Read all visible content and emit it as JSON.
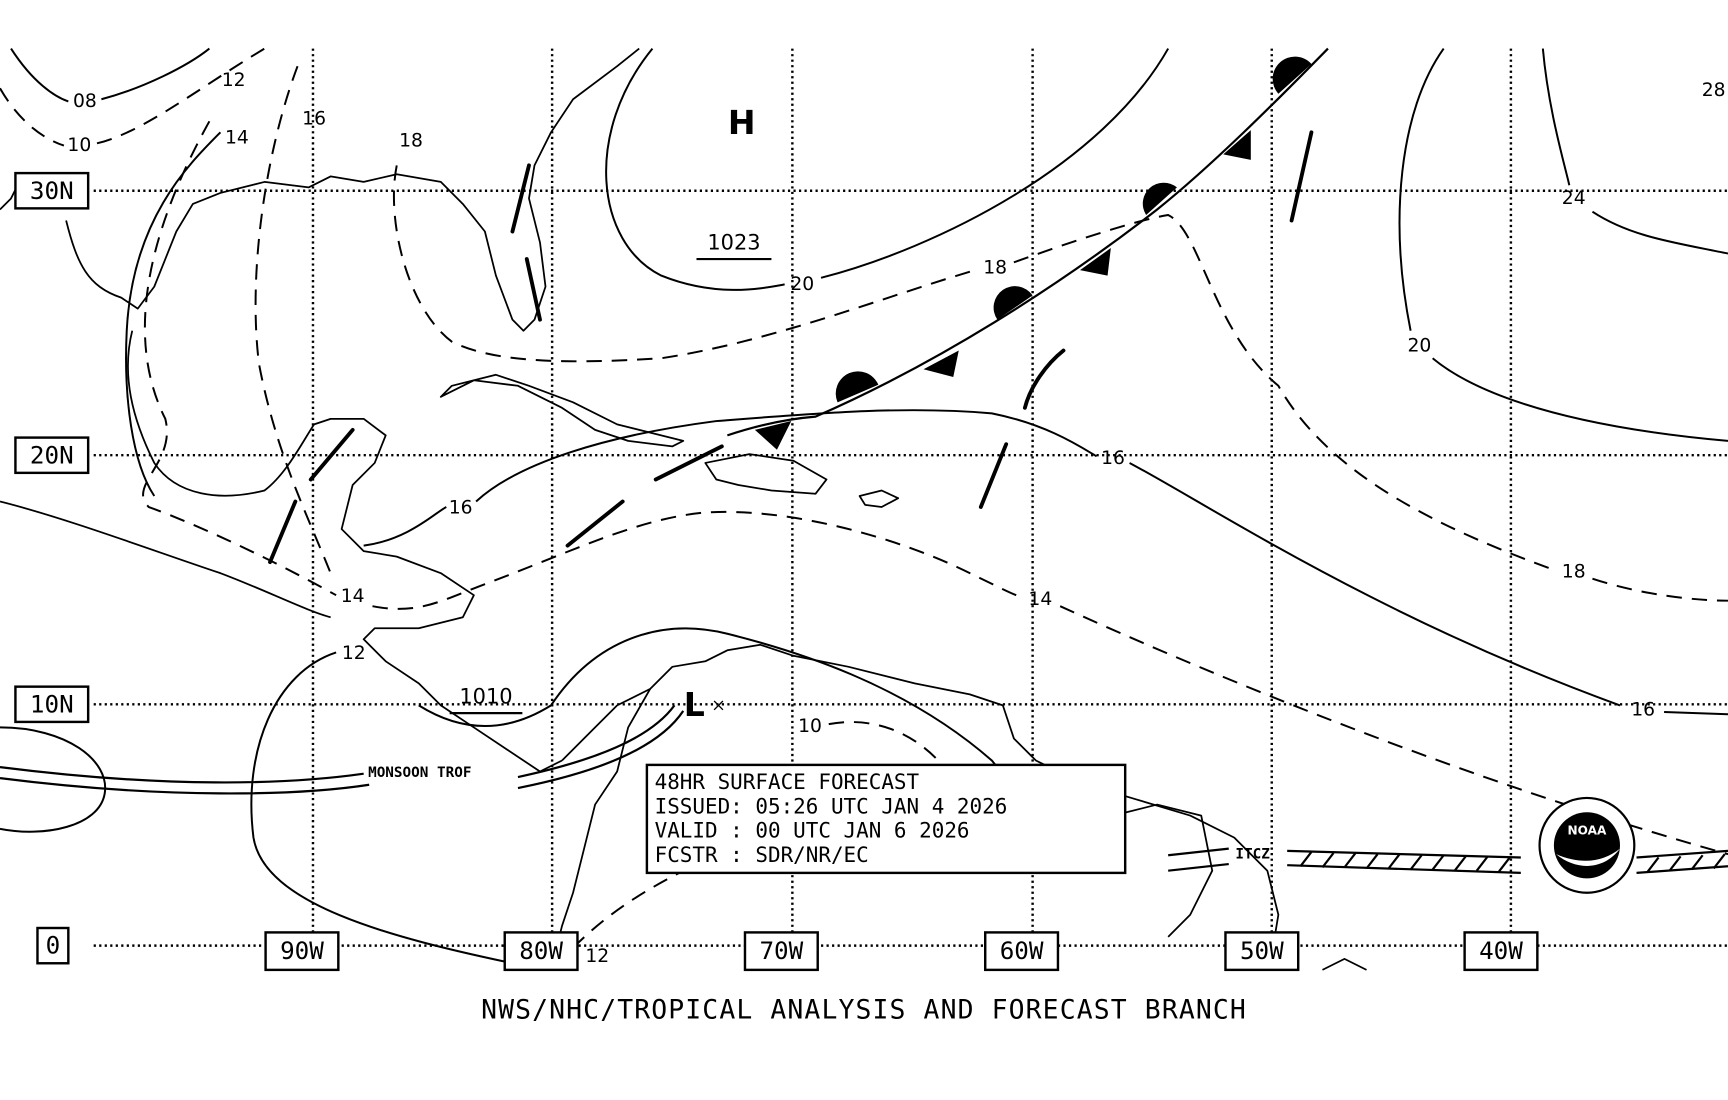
{
  "map": {
    "latitude_labels": [
      "30N",
      "20N",
      "10N",
      "0"
    ],
    "longitude_labels": [
      "90W",
      "80W",
      "70W",
      "60W",
      "50W",
      "40W"
    ],
    "isobar_labels": [
      "08",
      "10",
      "12",
      "14",
      "16",
      "18",
      "20",
      "18",
      "20",
      "24",
      "28",
      "16",
      "16",
      "14",
      "14",
      "18",
      "16",
      "12",
      "10",
      "12"
    ],
    "high": {
      "symbol": "H",
      "pressure": "1023"
    },
    "low": {
      "symbol": "L",
      "pressure": "1010"
    },
    "features": {
      "monsoon_trough": "MONSOON TROF",
      "itcz": "ITCZ"
    },
    "logo": "NOAA"
  },
  "info_box": {
    "title": "48HR SURFACE FORECAST",
    "issued": "ISSUED: 05:26 UTC JAN 4 2026",
    "valid": "VALID : 00 UTC JAN 6 2026",
    "forecaster": "FCSTR : SDR/NR/EC"
  },
  "footer": "NWS/NHC/TROPICAL ANALYSIS AND FORECAST BRANCH"
}
